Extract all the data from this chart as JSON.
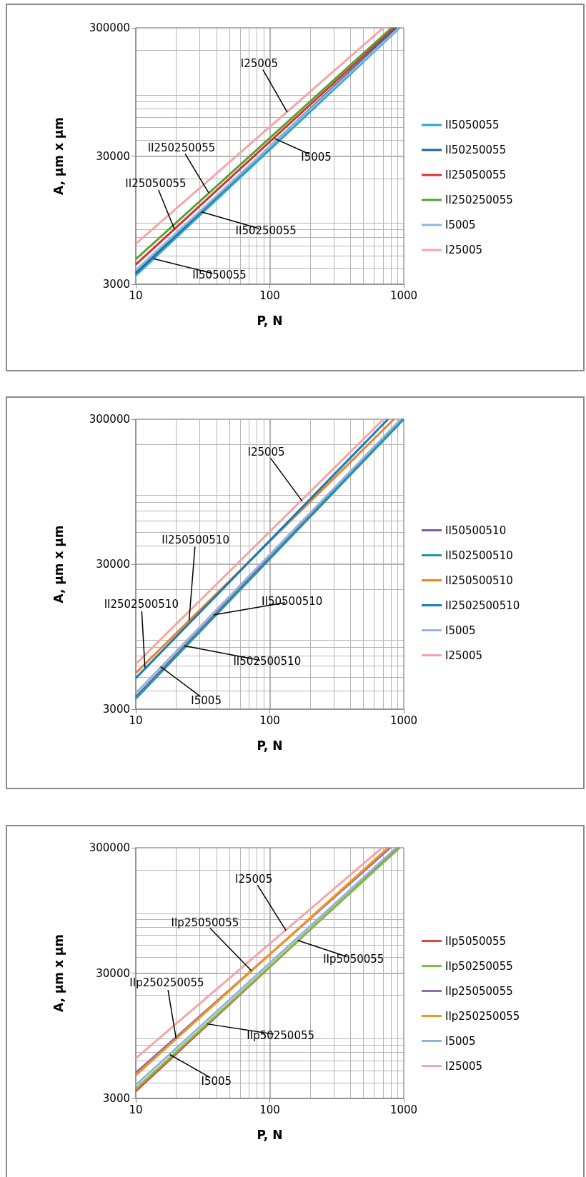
{
  "chart_data": [
    {
      "type": "line",
      "xlabel": "P, N",
      "ylabel": "A, µm x µm",
      "xlim": [
        10,
        1000
      ],
      "ylim": [
        3000,
        300000
      ],
      "xticks": [
        10,
        100,
        1000
      ],
      "yticks": [
        3000,
        30000,
        300000
      ],
      "log": "xy",
      "grid": true,
      "legend": "right",
      "marker": "none",
      "series": [
        {
          "name": "II5050055",
          "color": "#1fa9cf",
          "x": [
            10,
            930
          ],
          "values": [
            3520,
            300000
          ]
        },
        {
          "name": "II50250055",
          "color": "#1f5fa6",
          "x": [
            10,
            880
          ],
          "values": [
            3680,
            300000
          ]
        },
        {
          "name": "II25050055",
          "color": "#d9332c",
          "x": [
            10,
            846
          ],
          "values": [
            4280,
            300000
          ]
        },
        {
          "name": "II250250055",
          "color": "#56a033",
          "x": [
            10,
            811
          ],
          "values": [
            4700,
            300000
          ]
        },
        {
          "name": "I5005",
          "color": "#95b3d7",
          "x": [
            10,
            918
          ],
          "values": [
            3850,
            300000
          ]
        },
        {
          "name": "I25005",
          "color": "#f4a6a6",
          "x": [
            10,
            703
          ],
          "values": [
            6200,
            300000
          ]
        }
      ],
      "annotations": [
        {
          "text": "I25005",
          "x": 135,
          "y": 66000
        },
        {
          "text": "I5005",
          "x": 109,
          "y": 41000
        },
        {
          "text": "II250250055",
          "x": 35,
          "y": 15500
        },
        {
          "text": "II25050055",
          "x": 19.4,
          "y": 8100
        },
        {
          "text": "II50250055",
          "x": 31,
          "y": 11000
        },
        {
          "text": "II5050055",
          "x": 13.6,
          "y": 4750
        }
      ]
    },
    {
      "type": "line",
      "xlabel": "P, N",
      "ylabel": "A, µm x µm",
      "xlim": [
        10,
        1000
      ],
      "ylim": [
        3000,
        300000
      ],
      "xticks": [
        10,
        100,
        1000
      ],
      "yticks": [
        3000,
        30000,
        300000
      ],
      "log": "xy",
      "grid": true,
      "legend": "right",
      "marker": "none",
      "series": [
        {
          "name": "II50500510",
          "color": "#7e57a0",
          "x": [
            10,
            980
          ],
          "values": [
            3650,
            300000
          ]
        },
        {
          "name": "II502500510",
          "color": "#2196a8",
          "x": [
            10,
            1000
          ],
          "values": [
            3550,
            300000
          ]
        },
        {
          "name": "II250500510",
          "color": "#f57f20",
          "x": [
            10,
            844
          ],
          "values": [
            5330,
            300000
          ]
        },
        {
          "name": "II2502500510",
          "color": "#0f7dc2",
          "x": [
            10,
            762
          ],
          "values": [
            4910,
            300000
          ]
        },
        {
          "name": "I5005",
          "color": "#95b3d7",
          "x": [
            10,
            950
          ],
          "values": [
            3870,
            300000
          ]
        },
        {
          "name": "I25005",
          "color": "#f4a6a6",
          "x": [
            10,
            706
          ],
          "values": [
            6150,
            300000
          ]
        }
      ],
      "annotations": [
        {
          "text": "I25005",
          "x": 174,
          "y": 82000
        },
        {
          "text": "II250500510",
          "x": 25,
          "y": 12300
        },
        {
          "text": "II2502500510",
          "x": 11.7,
          "y": 5800
        },
        {
          "text": "II50500510",
          "x": 38,
          "y": 13400
        },
        {
          "text": "II502500510",
          "x": 23,
          "y": 8200
        },
        {
          "text": "I5005",
          "x": 15.3,
          "y": 5900
        }
      ]
    },
    {
      "type": "line",
      "xlabel": "P, N",
      "ylabel": "A, µm x µm",
      "xlim": [
        10,
        1000
      ],
      "ylim": [
        3000,
        300000
      ],
      "xticks": [
        10,
        100,
        1000
      ],
      "yticks": [
        3000,
        30000,
        300000
      ],
      "log": "xy",
      "grid": true,
      "legend": "right",
      "marker": "none",
      "series": [
        {
          "name": "IIp5050055",
          "color": "#e8463c",
          "x": [
            10,
            914
          ],
          "values": [
            3430,
            300000
          ]
        },
        {
          "name": "IIp50250055",
          "color": "#7ac143",
          "x": [
            10,
            933
          ],
          "values": [
            3580,
            300000
          ]
        },
        {
          "name": "IIp25050055",
          "color": "#8e6bb4",
          "x": [
            10,
            793
          ],
          "values": [
            4800,
            300000
          ]
        },
        {
          "name": "IIp250250055",
          "color": "#f7941d",
          "x": [
            10,
            762
          ],
          "values": [
            4590,
            300000
          ]
        },
        {
          "name": "I5005",
          "color": "#95b3d7",
          "x": [
            10,
            878
          ],
          "values": [
            3830,
            300000
          ]
        },
        {
          "name": "I25005",
          "color": "#f4a6a6",
          "x": [
            10,
            688
          ],
          "values": [
            6270,
            300000
          ]
        }
      ],
      "annotations": [
        {
          "text": "I25005",
          "x": 132,
          "y": 65600
        },
        {
          "text": "IIp5050055",
          "x": 162,
          "y": 54700
        },
        {
          "text": "IIp25050055",
          "x": 73,
          "y": 31300
        },
        {
          "text": "IIp250250055",
          "x": 20,
          "y": 9000
        },
        {
          "text": "IIp50250055",
          "x": 34,
          "y": 11800
        },
        {
          "text": "I5005",
          "x": 18,
          "y": 6700
        }
      ]
    }
  ]
}
